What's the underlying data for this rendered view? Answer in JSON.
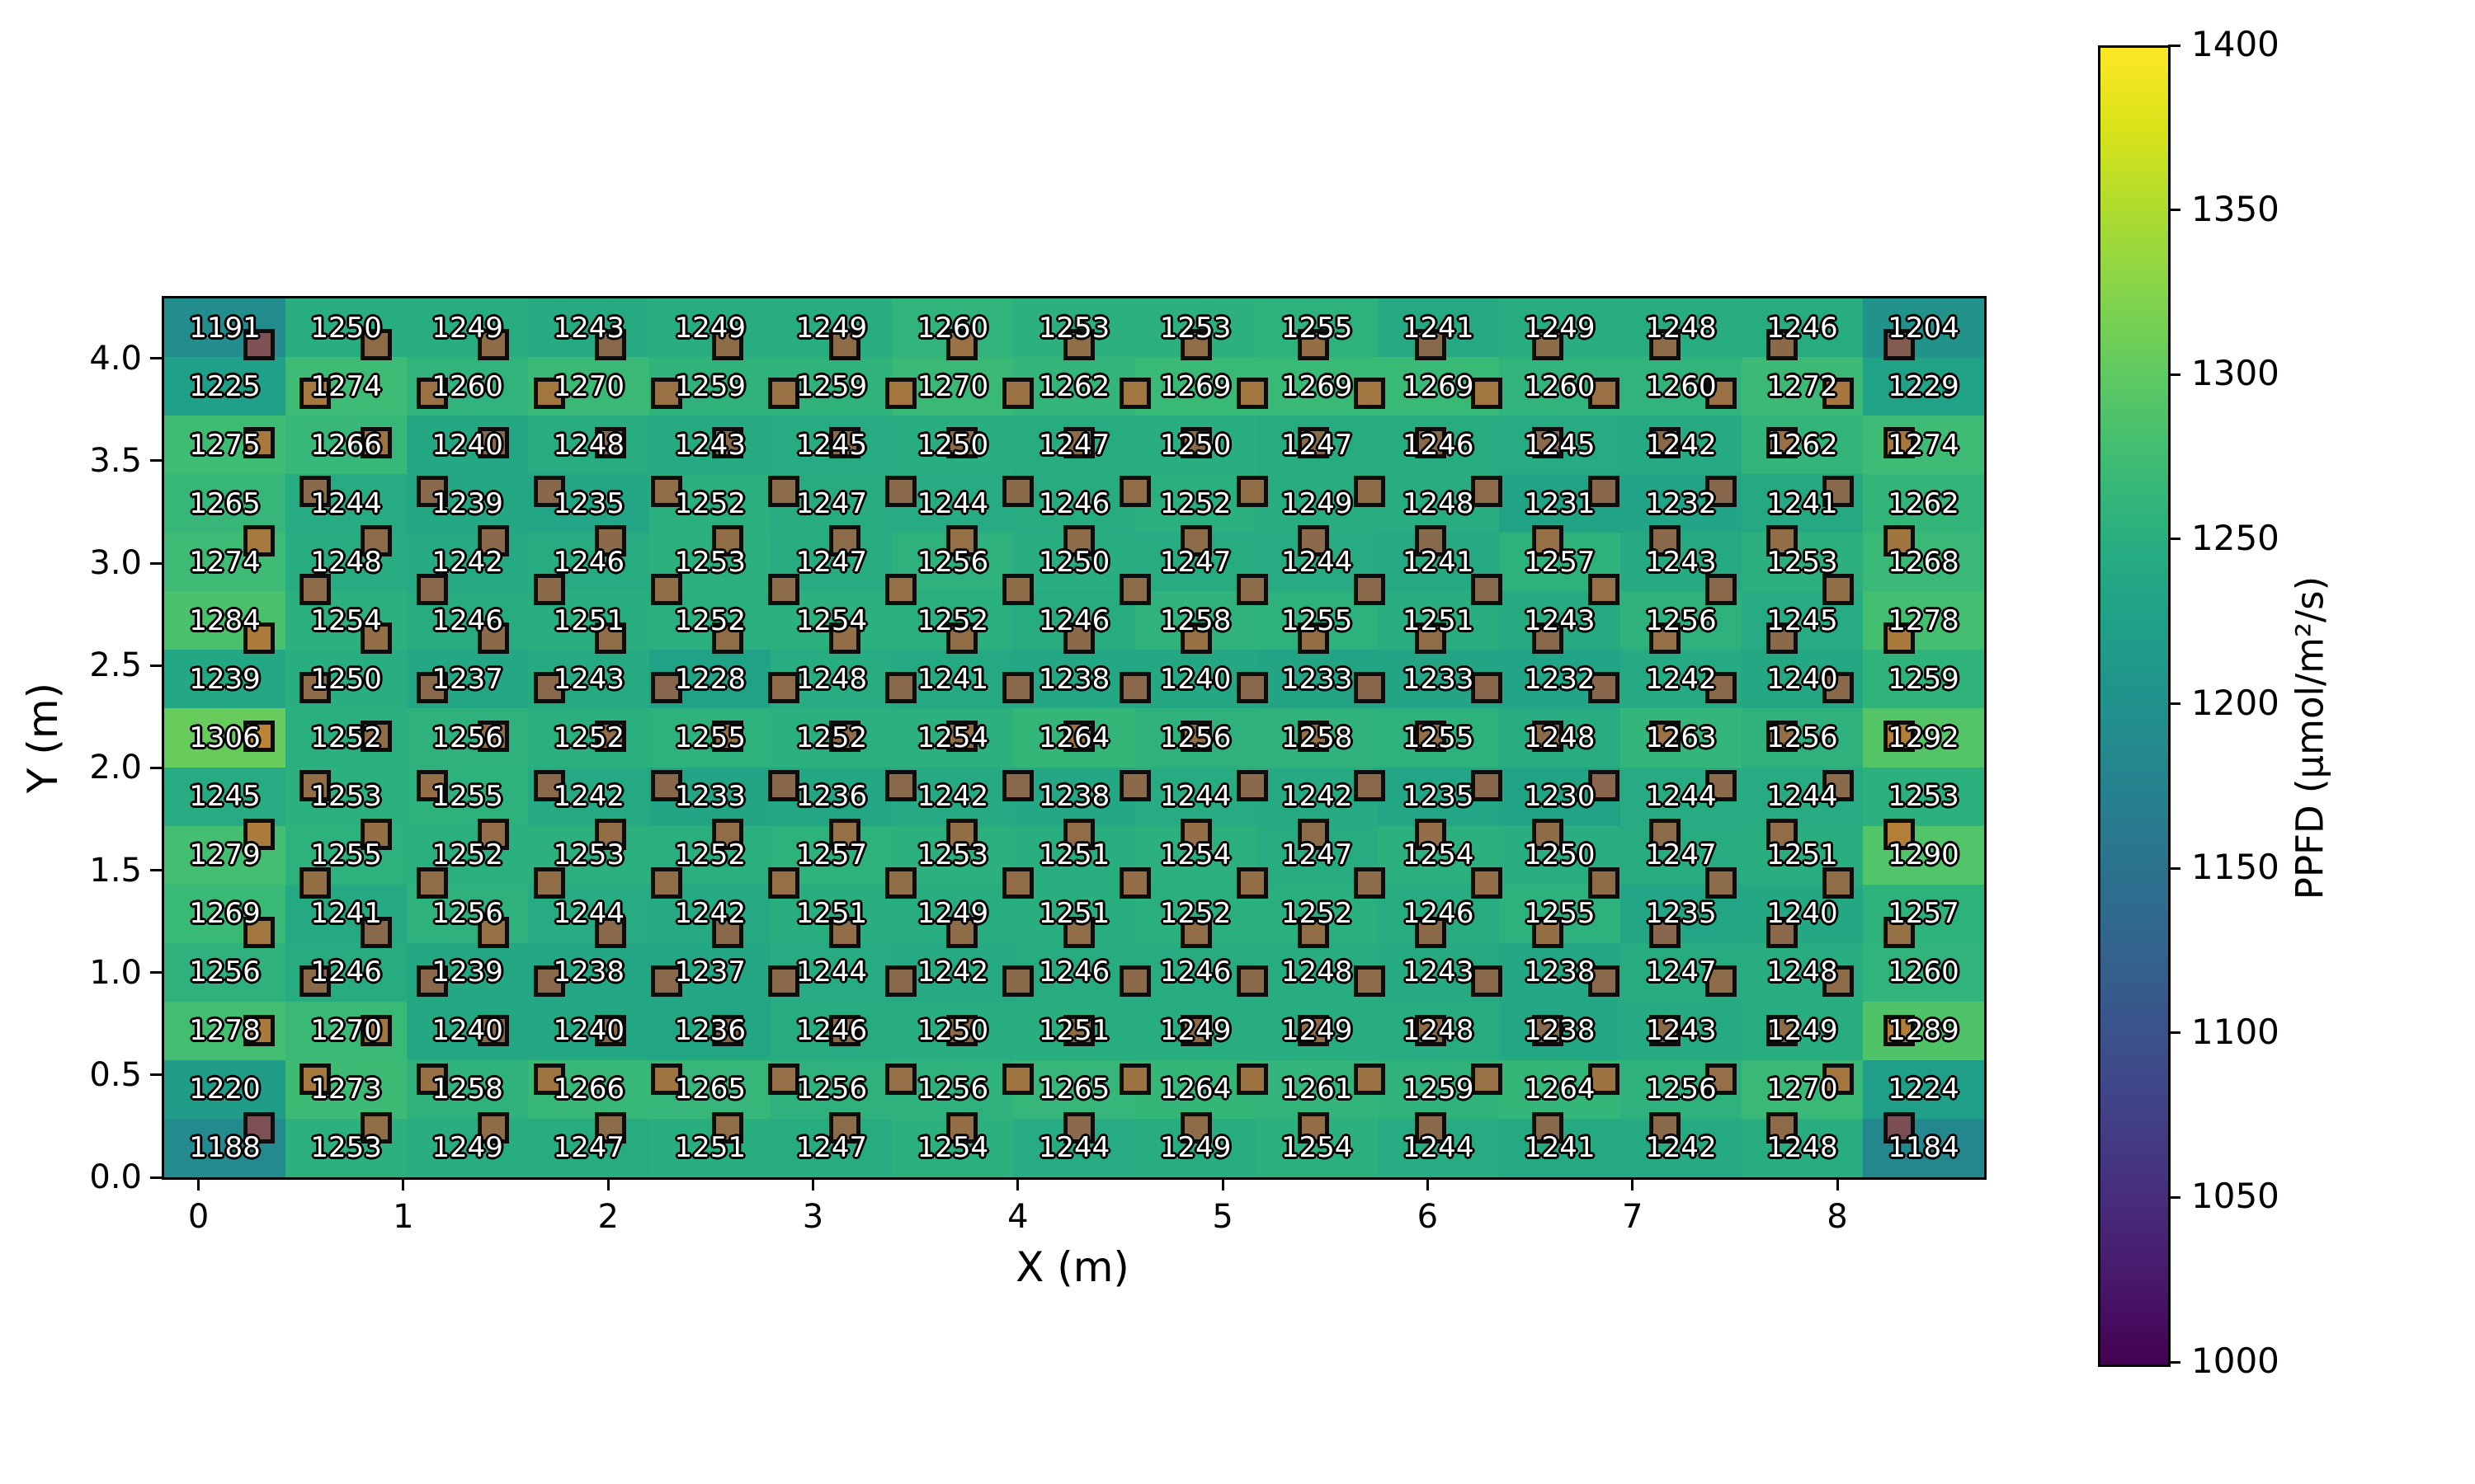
{
  "chart_data": {
    "type": "heatmap",
    "title": "",
    "xlabel": "X (m)",
    "ylabel": "Y (m)",
    "x_ticks": [
      "0",
      "1",
      "2",
      "3",
      "4",
      "5",
      "6",
      "7",
      "8"
    ],
    "y_ticks": [
      "0.0",
      "0.5",
      "1.0",
      "1.5",
      "2.0",
      "2.5",
      "3.0",
      "3.5",
      "4.0"
    ],
    "x_range_m": [
      -0.17,
      8.72
    ],
    "y_range_m": [
      0.0,
      4.29
    ],
    "grid_rows_top_to_bottom": [
      [
        1191,
        1250,
        1249,
        1243,
        1249,
        1249,
        1260,
        1253,
        1253,
        1255,
        1241,
        1249,
        1248,
        1246,
        1204
      ],
      [
        1225,
        1274,
        1260,
        1270,
        1259,
        1259,
        1270,
        1262,
        1269,
        1269,
        1269,
        1260,
        1260,
        1272,
        1229
      ],
      [
        1275,
        1266,
        1240,
        1248,
        1243,
        1245,
        1250,
        1247,
        1250,
        1247,
        1246,
        1245,
        1242,
        1262,
        1274
      ],
      [
        1265,
        1244,
        1239,
        1235,
        1252,
        1247,
        1244,
        1246,
        1252,
        1249,
        1248,
        1231,
        1232,
        1241,
        1262
      ],
      [
        1274,
        1248,
        1242,
        1246,
        1253,
        1247,
        1256,
        1250,
        1247,
        1244,
        1241,
        1257,
        1243,
        1253,
        1268
      ],
      [
        1284,
        1254,
        1246,
        1251,
        1252,
        1254,
        1252,
        1246,
        1258,
        1255,
        1251,
        1243,
        1256,
        1245,
        1278
      ],
      [
        1239,
        1250,
        1237,
        1243,
        1228,
        1248,
        1241,
        1238,
        1240,
        1233,
        1233,
        1232,
        1242,
        1240,
        1259
      ],
      [
        1306,
        1252,
        1256,
        1252,
        1255,
        1252,
        1254,
        1264,
        1256,
        1258,
        1255,
        1248,
        1263,
        1256,
        1292
      ],
      [
        1245,
        1253,
        1255,
        1242,
        1233,
        1236,
        1242,
        1238,
        1244,
        1242,
        1235,
        1230,
        1244,
        1244,
        1253
      ],
      [
        1279,
        1255,
        1252,
        1253,
        1252,
        1257,
        1253,
        1251,
        1254,
        1247,
        1254,
        1250,
        1247,
        1251,
        1290
      ],
      [
        1269,
        1241,
        1256,
        1244,
        1242,
        1251,
        1249,
        1251,
        1252,
        1252,
        1246,
        1255,
        1235,
        1240,
        1257
      ],
      [
        1256,
        1246,
        1239,
        1238,
        1237,
        1244,
        1242,
        1246,
        1246,
        1248,
        1243,
        1238,
        1247,
        1248,
        1260
      ],
      [
        1278,
        1270,
        1240,
        1240,
        1236,
        1246,
        1250,
        1251,
        1249,
        1249,
        1248,
        1238,
        1243,
        1249,
        1289
      ],
      [
        1220,
        1273,
        1258,
        1266,
        1265,
        1256,
        1256,
        1265,
        1264,
        1261,
        1259,
        1264,
        1256,
        1270,
        1224
      ],
      [
        1188,
        1253,
        1249,
        1247,
        1251,
        1247,
        1254,
        1244,
        1249,
        1254,
        1244,
        1241,
        1242,
        1248,
        1184
      ]
    ],
    "colorbar": {
      "label": "PPFD (μmol/m²/s)",
      "min": 1000,
      "max": 1400,
      "ticks": [
        "1400",
        "1350",
        "1300",
        "1250",
        "1200",
        "1150",
        "1100",
        "1050",
        "1000"
      ],
      "colormap": "viridis"
    },
    "colormap_stops": [
      "#440154",
      "#48186a",
      "#472d7b",
      "#424086",
      "#3b528b",
      "#33638d",
      "#2c728e",
      "#26828e",
      "#21918c",
      "#1fa088",
      "#28ae80",
      "#3fbc73",
      "#5ec962",
      "#84d44b",
      "#addc30",
      "#d8e219",
      "#fde725"
    ],
    "fixtures": {
      "marker": "square",
      "rows": 17,
      "columns_even_rows": 15,
      "columns_odd_rows": 14,
      "edge_color": "#0d0d0d",
      "color_low": "#7b4b57",
      "color_mid": "#8a6a4a",
      "color_high": "#c08532"
    }
  }
}
